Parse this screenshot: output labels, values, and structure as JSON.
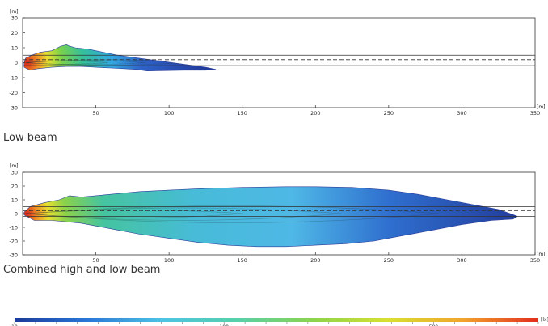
{
  "chart_data": [
    {
      "type": "heatmap",
      "caption": "Low beam",
      "x_unit": "[m]",
      "y_unit": "[m]",
      "xlim": [
        0,
        350
      ],
      "ylim": [
        -30,
        30
      ],
      "x_ticks": [
        50,
        100,
        150,
        200,
        250,
        300,
        350
      ],
      "y_ticks": [
        30,
        20,
        10,
        0,
        -10,
        -20,
        -30
      ],
      "lane_lines": [
        {
          "y": 5,
          "style": "solid"
        },
        {
          "y": 2,
          "style": "dashed"
        },
        {
          "y": -2,
          "style": "solid"
        }
      ],
      "outline_upper": [
        [
          1,
          0
        ],
        [
          2,
          3
        ],
        [
          6,
          5
        ],
        [
          12,
          7
        ],
        [
          20,
          8
        ],
        [
          26,
          11
        ],
        [
          30,
          12
        ],
        [
          32,
          11
        ],
        [
          36,
          10
        ],
        [
          45,
          9
        ],
        [
          55,
          7
        ],
        [
          65,
          5
        ],
        [
          80,
          3
        ],
        [
          95,
          1
        ],
        [
          110,
          -1
        ],
        [
          125,
          -3
        ],
        [
          132,
          -4.5
        ]
      ],
      "outline_lower": [
        [
          132,
          -4.5
        ],
        [
          125,
          -5
        ],
        [
          110,
          -5
        ],
        [
          95,
          -5.3
        ],
        [
          85,
          -5.5
        ],
        [
          78,
          -4.5
        ],
        [
          70,
          -4
        ],
        [
          60,
          -3.5
        ],
        [
          50,
          -3
        ],
        [
          40,
          -2.5
        ],
        [
          30,
          -2.5
        ],
        [
          20,
          -3
        ],
        [
          10,
          -4
        ],
        [
          5,
          -5
        ],
        [
          1,
          -3
        ]
      ]
    },
    {
      "type": "heatmap",
      "caption": "Combined high and low beam",
      "x_unit": "[m]",
      "y_unit": "[m]",
      "xlim": [
        0,
        350
      ],
      "ylim": [
        -30,
        30
      ],
      "x_ticks": [
        50,
        100,
        150,
        200,
        250,
        300,
        350
      ],
      "y_ticks": [
        30,
        20,
        10,
        0,
        -10,
        -20,
        -30
      ],
      "lane_lines": [
        {
          "y": 5,
          "style": "solid"
        },
        {
          "y": 2,
          "style": "dashed"
        },
        {
          "y": -2,
          "style": "solid"
        }
      ],
      "outline_upper": [
        [
          1,
          1
        ],
        [
          5,
          5
        ],
        [
          15,
          8
        ],
        [
          25,
          10
        ],
        [
          32,
          13
        ],
        [
          40,
          12
        ],
        [
          60,
          14
        ],
        [
          80,
          16
        ],
        [
          100,
          17
        ],
        [
          120,
          18
        ],
        [
          150,
          19
        ],
        [
          180,
          19.5
        ],
        [
          200,
          19.5
        ],
        [
          225,
          19
        ],
        [
          250,
          17
        ],
        [
          270,
          14
        ],
        [
          290,
          10
        ],
        [
          310,
          6
        ],
        [
          325,
          3
        ],
        [
          333,
          0
        ],
        [
          338,
          -2
        ]
      ],
      "outline_lower": [
        [
          338,
          -2
        ],
        [
          335,
          -4
        ],
        [
          320,
          -5
        ],
        [
          300,
          -8
        ],
        [
          280,
          -12
        ],
        [
          260,
          -16
        ],
        [
          240,
          -20
        ],
        [
          220,
          -22
        ],
        [
          200,
          -23
        ],
        [
          180,
          -24
        ],
        [
          160,
          -24
        ],
        [
          140,
          -23
        ],
        [
          120,
          -21
        ],
        [
          100,
          -18
        ],
        [
          80,
          -15
        ],
        [
          60,
          -11
        ],
        [
          40,
          -7
        ],
        [
          20,
          -5
        ],
        [
          8,
          -5
        ],
        [
          1,
          -1
        ]
      ]
    },
    {
      "type": "colorbar",
      "unit": "[lx]",
      "tick_labels": [
        "10",
        "100",
        "500"
      ],
      "tick_positions": [
        0,
        0.4,
        0.8
      ],
      "colors": [
        "#1b3a9a",
        "#2a7ad8",
        "#4fc4e4",
        "#58d0a8",
        "#8cd44c",
        "#d8e030",
        "#f2a32c",
        "#e22d1f"
      ]
    }
  ]
}
